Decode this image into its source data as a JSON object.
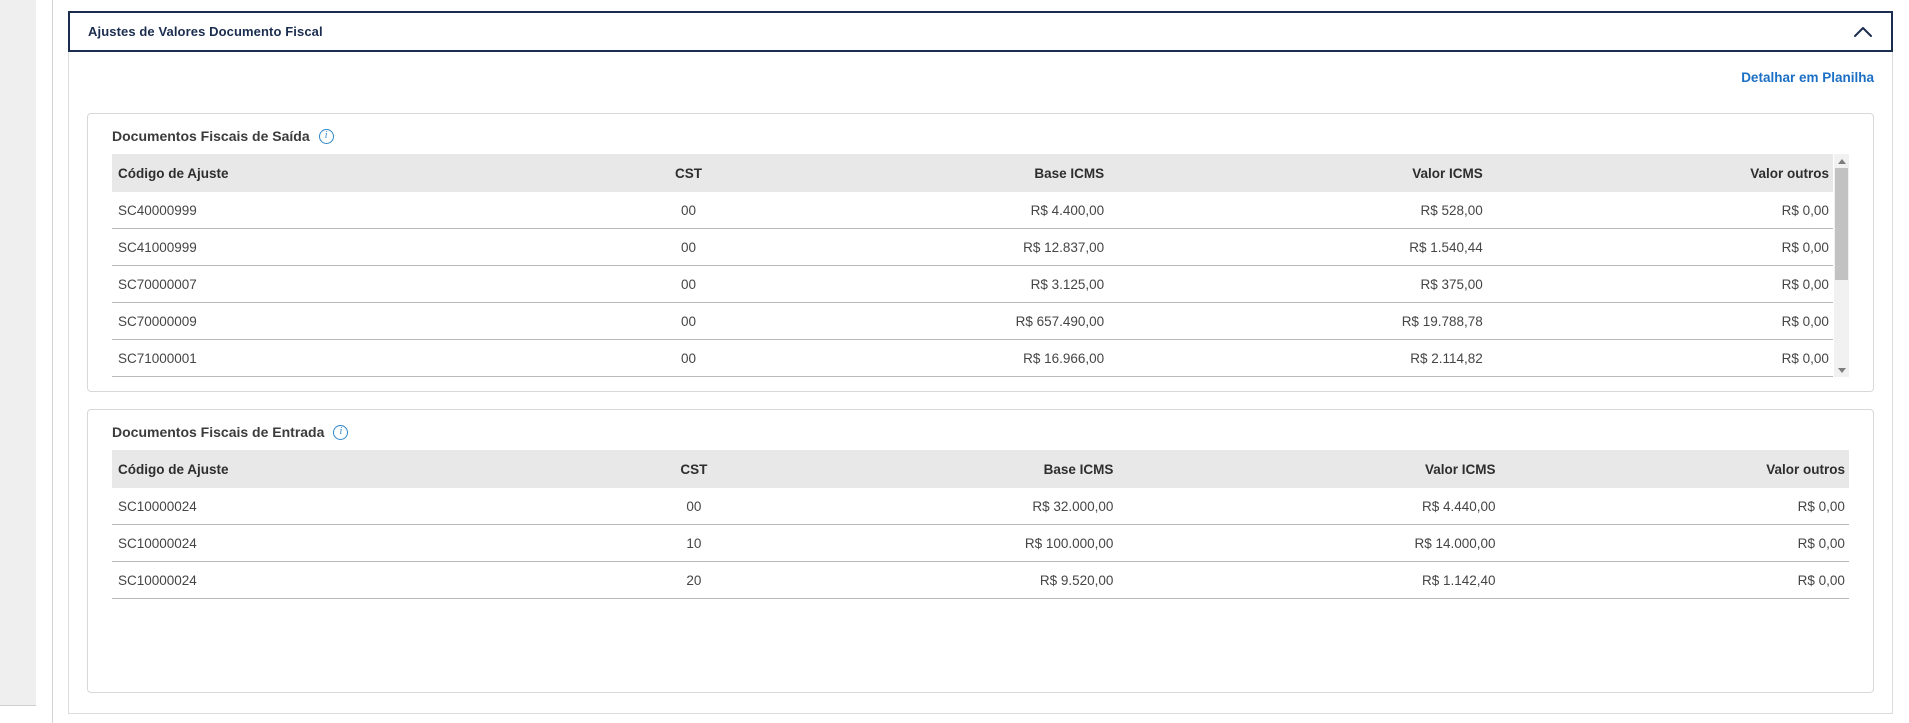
{
  "accordion": {
    "title": "Ajustes de Valores Documento Fiscal",
    "collapse_icon": "chevron-up-icon",
    "link": "Detalhar em Planilha"
  },
  "colors": {
    "navy": "#1b2d4f",
    "link_blue": "#1b6fc4",
    "info_blue": "#2d87cc",
    "table_header_bg": "#e8e8e8"
  },
  "tables": {
    "saida": {
      "title": "Documentos Fiscais de Saída",
      "info_icon": "info-icon",
      "columns": [
        "Código de Ajuste",
        "CST",
        "Base ICMS",
        "Valor ICMS",
        "Valor outros"
      ],
      "rows": [
        [
          "SC40000999",
          "00",
          "R$ 4.400,00",
          "R$ 528,00",
          "R$ 0,00"
        ],
        [
          "SC41000999",
          "00",
          "R$ 12.837,00",
          "R$ 1.540,44",
          "R$ 0,00"
        ],
        [
          "SC70000007",
          "00",
          "R$ 3.125,00",
          "R$ 375,00",
          "R$ 0,00"
        ],
        [
          "SC70000009",
          "00",
          "R$ 657.490,00",
          "R$ 19.788,78",
          "R$ 0,00"
        ],
        [
          "SC71000001",
          "00",
          "R$ 16.966,00",
          "R$ 2.114,82",
          "R$ 0,00"
        ]
      ],
      "has_scrollbar": true
    },
    "entrada": {
      "title": "Documentos Fiscais de Entrada",
      "info_icon": "info-icon",
      "columns": [
        "Código de Ajuste",
        "CST",
        "Base ICMS",
        "Valor ICMS",
        "Valor outros"
      ],
      "rows": [
        [
          "SC10000024",
          "00",
          "R$ 32.000,00",
          "R$ 4.440,00",
          "R$ 0,00"
        ],
        [
          "SC10000024",
          "10",
          "R$ 100.000,00",
          "R$ 14.000,00",
          "R$ 0,00"
        ],
        [
          "SC10000024",
          "20",
          "R$ 9.520,00",
          "R$ 1.142,40",
          "R$ 0,00"
        ]
      ],
      "has_scrollbar": false
    }
  }
}
